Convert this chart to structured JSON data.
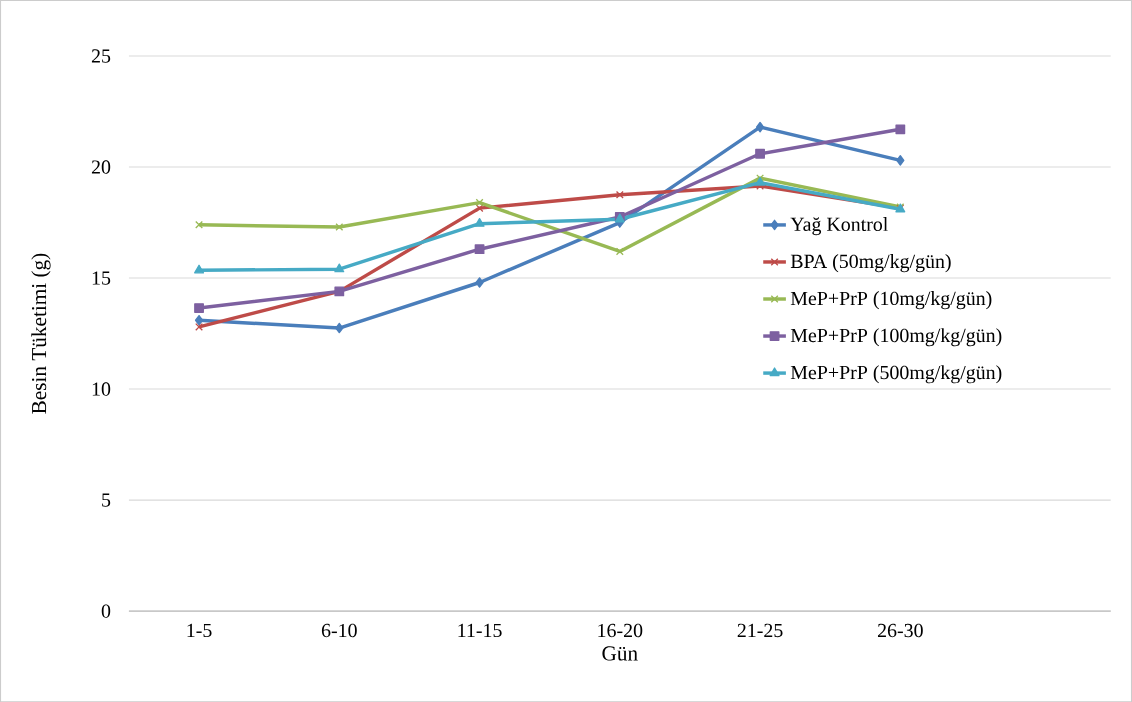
{
  "chart_data": {
    "type": "line",
    "xlabel": "Gün",
    "ylabel": "Besin Tüketimi (g)",
    "categories": [
      "1-5",
      "6-10",
      "11-15",
      "16-20",
      "21-25",
      "26-30",
      null
    ],
    "ylim": [
      0,
      25
    ],
    "yticks": [
      0,
      5,
      10,
      15,
      20,
      25
    ],
    "grid": "y",
    "legend": "right",
    "series": [
      {
        "name": "Yağ Kontrol",
        "color": "#4a7ebb",
        "marker": "diamond",
        "values": [
          13.1,
          12.75,
          14.8,
          17.5,
          21.8,
          20.3,
          null
        ]
      },
      {
        "name": "BPA (50mg/kg/gün)",
        "color": "#be4b48",
        "marker": "cross",
        "values": [
          12.8,
          14.4,
          18.15,
          18.75,
          19.15,
          18.15,
          null
        ]
      },
      {
        "name": "MeP+PrP (10mg/kg/gün)",
        "color": "#98b954",
        "marker": "cross",
        "values": [
          17.4,
          17.3,
          18.4,
          16.2,
          19.5,
          18.2,
          null
        ]
      },
      {
        "name": "MeP+PrP (100mg/kg/gün)",
        "color": "#7d60a0",
        "marker": "square",
        "values": [
          13.65,
          14.4,
          16.3,
          17.75,
          20.6,
          21.7,
          null
        ]
      },
      {
        "name": "MeP+PrP (500mg/kg/gün)",
        "color": "#46aac5",
        "marker": "triangle",
        "values": [
          15.35,
          15.4,
          17.45,
          17.65,
          19.3,
          18.1,
          null
        ]
      }
    ]
  }
}
